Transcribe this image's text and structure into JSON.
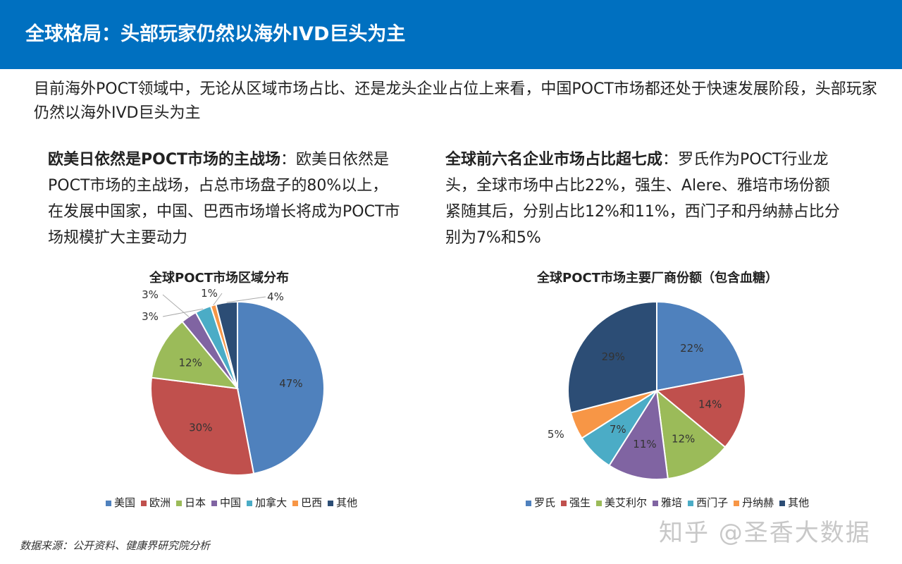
{
  "header": {
    "title": "全球格局：头部玩家仍然以海外IVD巨头为主"
  },
  "intro": "目前海外POCT领域中，无论从区域市场占比、还是龙头企业占位上来看，中国POCT市场都还处于快速发展阶段，头部玩家仍然以海外IVD巨头为主",
  "left": {
    "bold": "欧美日依然是POCT市场的主战场",
    "text": "：欧美日依然是POCT市场的主战场，占总市场盘子的80%以上，在发展中国家，中国、巴西市场增长将成为POCT市场规模扩大主要动力"
  },
  "right": {
    "bold": "全球前六名企业市场占比超七成",
    "text": "：罗氏作为POCT行业龙头，全球市场中占比22%，强生、Alere、雅培市场份额紧随其后，分别占比12%和11%，西门子和丹纳赫占比分别为7%和5%"
  },
  "source": "数据来源：公开资料、健康界研究院分析",
  "watermark": "知乎 @圣香大数据",
  "chart_data": [
    {
      "type": "pie",
      "title": "全球POCT市场区域分布",
      "categories": [
        "美国",
        "欧洲",
        "日本",
        "中国",
        "加拿大",
        "巴西",
        "其他"
      ],
      "values": [
        47,
        30,
        12,
        3,
        3,
        1,
        4
      ],
      "labels": [
        "47%",
        "30%",
        "12%",
        "3%",
        "3%",
        "1%",
        "4%"
      ],
      "colors": [
        "#4f81bd",
        "#c0504d",
        "#9bbb59",
        "#8064a2",
        "#4bacc6",
        "#f79646",
        "#2c4d75"
      ],
      "legend": "bottom"
    },
    {
      "type": "pie",
      "title": "全球POCT市场主要厂商份额（包含血糖）",
      "categories": [
        "罗氏",
        "强生",
        "美艾利尔",
        "雅培",
        "西门子",
        "丹纳赫",
        "其他"
      ],
      "values": [
        22,
        14,
        12,
        11,
        7,
        5,
        29
      ],
      "labels": [
        "22%",
        "14%",
        "12%",
        "11%",
        "7%",
        "5%",
        "29%"
      ],
      "colors": [
        "#4f81bd",
        "#c0504d",
        "#9bbb59",
        "#8064a2",
        "#4bacc6",
        "#f79646",
        "#2c4d75"
      ],
      "legend": "bottom"
    }
  ]
}
